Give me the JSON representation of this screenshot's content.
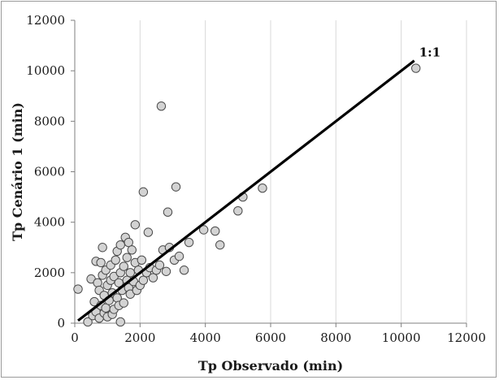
{
  "chart_data": {
    "type": "scatter",
    "xlabel": "Tp Observado (min)",
    "ylabel": "Tp Cenário 1 (min)",
    "xlim": [
      0,
      12000
    ],
    "ylim": [
      0,
      12000
    ],
    "xticks": [
      0,
      2000,
      4000,
      6000,
      8000,
      10000,
      12000
    ],
    "yticks": [
      0,
      2000,
      4000,
      6000,
      8000,
      10000,
      12000
    ],
    "grid": "vertical",
    "marker_color": "#d3d3d3",
    "marker_edge": "#4a4a4a",
    "reference_line": {
      "label": "1:1",
      "x": [
        100,
        10400
      ],
      "y": [
        100,
        10400
      ]
    },
    "points": [
      [
        100,
        1350
      ],
      [
        400,
        50
      ],
      [
        500,
        1750
      ],
      [
        550,
        300
      ],
      [
        600,
        850
      ],
      [
        650,
        2450
      ],
      [
        650,
        450
      ],
      [
        700,
        1600
      ],
      [
        750,
        200
      ],
      [
        750,
        1300
      ],
      [
        800,
        2400
      ],
      [
        800,
        700
      ],
      [
        850,
        3000
      ],
      [
        850,
        1900
      ],
      [
        900,
        400
      ],
      [
        900,
        1100
      ],
      [
        950,
        2100
      ],
      [
        950,
        600
      ],
      [
        1000,
        1500
      ],
      [
        1000,
        250
      ],
      [
        1050,
        900
      ],
      [
        1100,
        2300
      ],
      [
        1100,
        1700
      ],
      [
        1150,
        350
      ],
      [
        1150,
        1200
      ],
      [
        1200,
        1850
      ],
      [
        1200,
        550
      ],
      [
        1250,
        2500
      ],
      [
        1300,
        1000
      ],
      [
        1300,
        2850
      ],
      [
        1350,
        1600
      ],
      [
        1350,
        700
      ],
      [
        1400,
        3100
      ],
      [
        1400,
        2000
      ],
      [
        1400,
        50
      ],
      [
        1450,
        1300
      ],
      [
        1500,
        2250
      ],
      [
        1500,
        800
      ],
      [
        1550,
        3400
      ],
      [
        1600,
        1700
      ],
      [
        1600,
        2600
      ],
      [
        1650,
        3200
      ],
      [
        1650,
        1400
      ],
      [
        1700,
        2000
      ],
      [
        1700,
        1150
      ],
      [
        1750,
        2900
      ],
      [
        1800,
        1650
      ],
      [
        1850,
        3900
      ],
      [
        1850,
        2400
      ],
      [
        1900,
        1300
      ],
      [
        1950,
        2100
      ],
      [
        2000,
        1500
      ],
      [
        2050,
        2500
      ],
      [
        2100,
        5200
      ],
      [
        2100,
        1700
      ],
      [
        2200,
        2000
      ],
      [
        2250,
        3600
      ],
      [
        2300,
        2200
      ],
      [
        2400,
        1800
      ],
      [
        2500,
        2100
      ],
      [
        2600,
        2300
      ],
      [
        2650,
        8600
      ],
      [
        2700,
        2900
      ],
      [
        2800,
        2050
      ],
      [
        2850,
        4400
      ],
      [
        2900,
        3000
      ],
      [
        3050,
        2500
      ],
      [
        3100,
        5400
      ],
      [
        3200,
        2650
      ],
      [
        3350,
        2100
      ],
      [
        3500,
        3200
      ],
      [
        3950,
        3700
      ],
      [
        4300,
        3650
      ],
      [
        4450,
        3100
      ],
      [
        5000,
        4450
      ],
      [
        5150,
        5000
      ],
      [
        5750,
        5350
      ],
      [
        10450,
        10100
      ]
    ]
  }
}
